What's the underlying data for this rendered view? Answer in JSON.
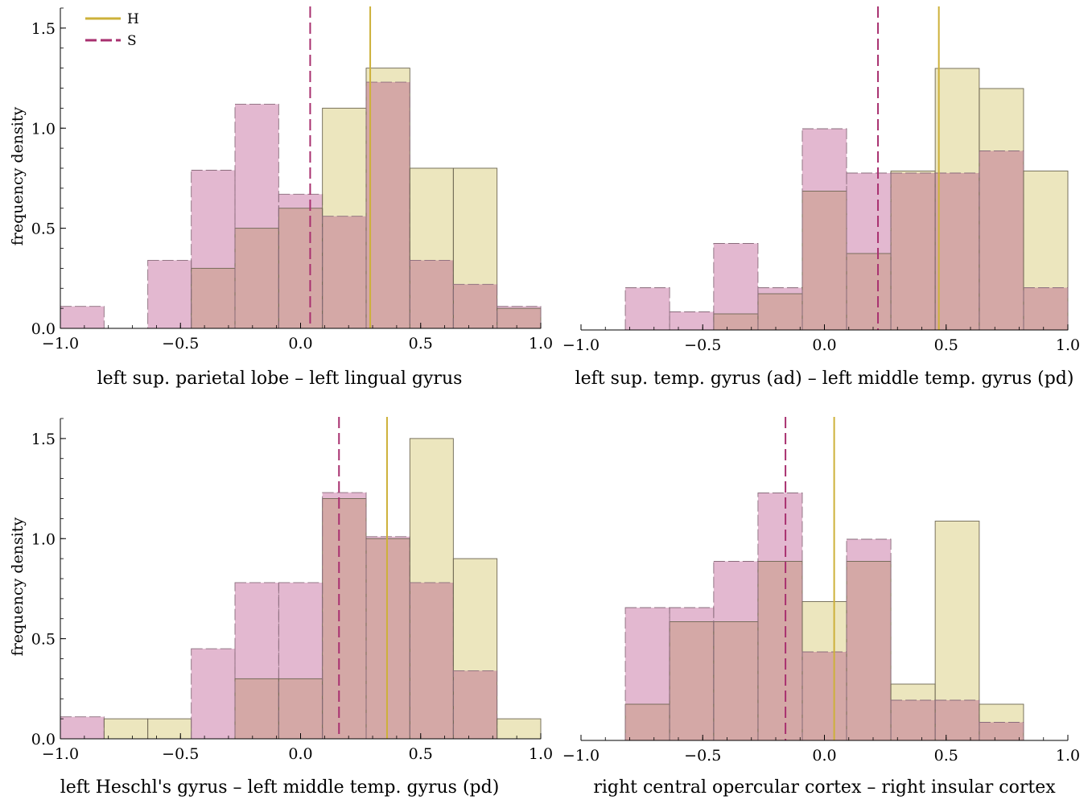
{
  "chart_data": [
    {
      "type": "histogram",
      "xlabel": "left sup. parietal lobe – left lingual gyrus",
      "ylabel": "frequency density",
      "xlim": [
        -1.0,
        1.0
      ],
      "ylim": [
        0,
        1.6
      ],
      "xticks": [
        -1.0,
        -0.5,
        0.0,
        0.5,
        1.0
      ],
      "xtick_labels": [
        "−1.0",
        "−0.5",
        "0.0",
        "0.5",
        "1.0"
      ],
      "yticks": [
        0.0,
        0.5,
        1.0,
        1.5
      ],
      "ytick_labels": [
        "0.0",
        "0.5",
        "1.0",
        "1.5"
      ],
      "bins": [
        -1.0,
        -0.818,
        -0.636,
        -0.455,
        -0.273,
        -0.091,
        0.091,
        0.273,
        0.455,
        0.636,
        0.818,
        1.0
      ],
      "series": [
        {
          "name": "H",
          "values": [
            0,
            0,
            0,
            0.3,
            0.5,
            0.6,
            1.1,
            1.3,
            0.8,
            0.8,
            0.1
          ],
          "mean": 0.29
        },
        {
          "name": "S",
          "values": [
            0.11,
            0,
            0.34,
            0.79,
            1.12,
            0.67,
            0.56,
            1.23,
            0.34,
            0.22,
            0.11
          ],
          "mean": 0.04
        }
      ],
      "legend": {
        "position": "top-left",
        "entries": [
          "H",
          "S"
        ]
      }
    },
    {
      "type": "histogram",
      "xlabel": "left sup. temp. gyrus (ad) – left middle temp. gyrus (pd)",
      "ylabel": "",
      "xlim": [
        -1.0,
        1.0
      ],
      "ylim": [
        0,
        1.6
      ],
      "xticks": [
        -1.0,
        -0.5,
        0.0,
        0.5,
        1.0
      ],
      "xtick_labels": [
        "−1.0",
        "−0.5",
        "0.0",
        "0.5",
        "1.0"
      ],
      "bins": [
        -0.818,
        -0.636,
        -0.455,
        -0.273,
        -0.091,
        0.091,
        0.273,
        0.455,
        0.636,
        0.818,
        1.0
      ],
      "series": [
        {
          "name": "H",
          "values": [
            0,
            0,
            0.08,
            0.18,
            0.69,
            0.38,
            0.79,
            1.3,
            1.2,
            0.79
          ],
          "mean": 0.47
        },
        {
          "name": "S",
          "values": [
            0.21,
            0.09,
            0.43,
            0.21,
            1.0,
            0.78,
            0.78,
            0.78,
            0.89,
            0.21
          ],
          "mean": 0.22
        }
      ]
    },
    {
      "type": "histogram",
      "xlabel": "left Heschl's gyrus – left middle temp. gyrus (pd)",
      "ylabel": "frequency density",
      "xlim": [
        -1.0,
        1.0
      ],
      "ylim": [
        0,
        1.6
      ],
      "xticks": [
        -1.0,
        -0.5,
        0.0,
        0.5,
        1.0
      ],
      "xtick_labels": [
        "−1.0",
        "−0.5",
        "0.0",
        "0.5",
        "1.0"
      ],
      "yticks": [
        0.0,
        0.5,
        1.0,
        1.5
      ],
      "ytick_labels": [
        "0.0",
        "0.5",
        "1.0",
        "1.5"
      ],
      "bins": [
        -1.0,
        -0.818,
        -0.636,
        -0.455,
        -0.273,
        -0.091,
        0.091,
        0.273,
        0.455,
        0.636,
        0.818,
        1.0
      ],
      "series": [
        {
          "name": "H",
          "values": [
            0,
            0.1,
            0.1,
            0,
            0.3,
            0.3,
            1.2,
            1.0,
            1.5,
            0.9,
            0.1
          ],
          "mean": 0.36
        },
        {
          "name": "S",
          "values": [
            0.11,
            0,
            0,
            0.45,
            0.78,
            0.78,
            1.23,
            1.01,
            0.78,
            0.34,
            0
          ],
          "mean": 0.16
        }
      ]
    },
    {
      "type": "histogram",
      "xlabel": "right central opercular cortex – right insular cortex",
      "ylabel": "",
      "xlim": [
        -1.0,
        1.0
      ],
      "ylim": [
        0,
        1.6
      ],
      "xticks": [
        -1.0,
        -0.5,
        0.0,
        0.5,
        1.0
      ],
      "xtick_labels": [
        "−1.0",
        "−0.5",
        "0.0",
        "0.5",
        "1.0"
      ],
      "bins": [
        -0.818,
        -0.636,
        -0.455,
        -0.273,
        -0.091,
        0.091,
        0.273,
        0.455,
        0.636,
        0.818
      ],
      "series": [
        {
          "name": "H",
          "values": [
            0.18,
            0.59,
            0.59,
            0.89,
            0.69,
            0.89,
            0.28,
            1.09,
            0.18
          ],
          "mean": 0.04
        },
        {
          "name": "S",
          "values": [
            0.66,
            0.66,
            0.89,
            1.23,
            0.44,
            1.0,
            0.2,
            0.2,
            0.09
          ],
          "mean": -0.16
        }
      ]
    }
  ],
  "colors": {
    "H_fill": "#ece6be",
    "S_fill": "#e3b8d0",
    "overlap_fill": "#d4a8a6",
    "H_line": "#cdb13a",
    "S_line": "#a8306f"
  }
}
